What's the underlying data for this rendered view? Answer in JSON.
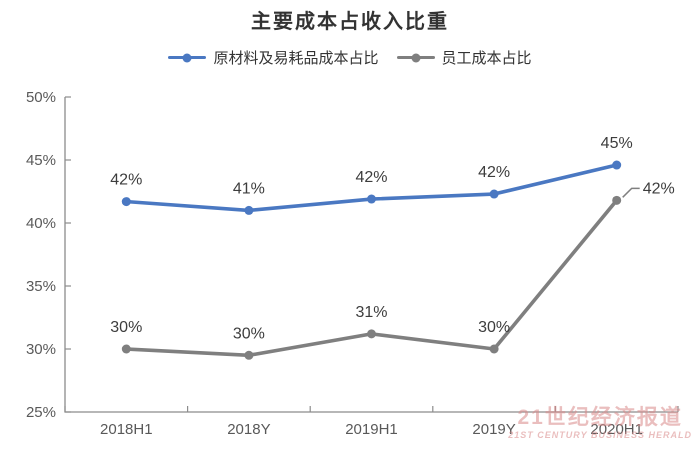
{
  "chart_data": {
    "type": "line",
    "title": "主要成本占收入比重",
    "categories": [
      "2018H1",
      "2018Y",
      "2019H1",
      "2019Y",
      "2020H1"
    ],
    "series": [
      {
        "name": "原材料及易耗品成本占比",
        "color": "#4A78C2",
        "values": [
          41.7,
          41.0,
          41.9,
          42.3,
          44.6
        ],
        "labels": [
          "42%",
          "41%",
          "42%",
          "42%",
          "45%"
        ],
        "label_position": "top"
      },
      {
        "name": "员工成本占比",
        "color": "#7F7F7F",
        "values": [
          30.0,
          29.5,
          31.2,
          30.0,
          41.8
        ],
        "labels": [
          "30%",
          "30%",
          "31%",
          "30%",
          "42%"
        ],
        "label_position": "top",
        "last_label_position": "right"
      }
    ],
    "y_axis": {
      "min": 25,
      "max": 50,
      "step": 5,
      "suffix": "%",
      "tick_labels": [
        "50%",
        "45%",
        "40%",
        "35%",
        "30%",
        "25%"
      ]
    },
    "legend_position": "top-center",
    "grid": false,
    "colors": {
      "axis": "#8c8c8c",
      "tick_text": "#595959",
      "data_label_text": "#3d3d3d",
      "title_text": "#333333"
    }
  },
  "watermark": {
    "line1": "21世纪经济报道",
    "line2": "21ST CENTURY BUSINESS HERALD",
    "color": "#D98A8A"
  }
}
